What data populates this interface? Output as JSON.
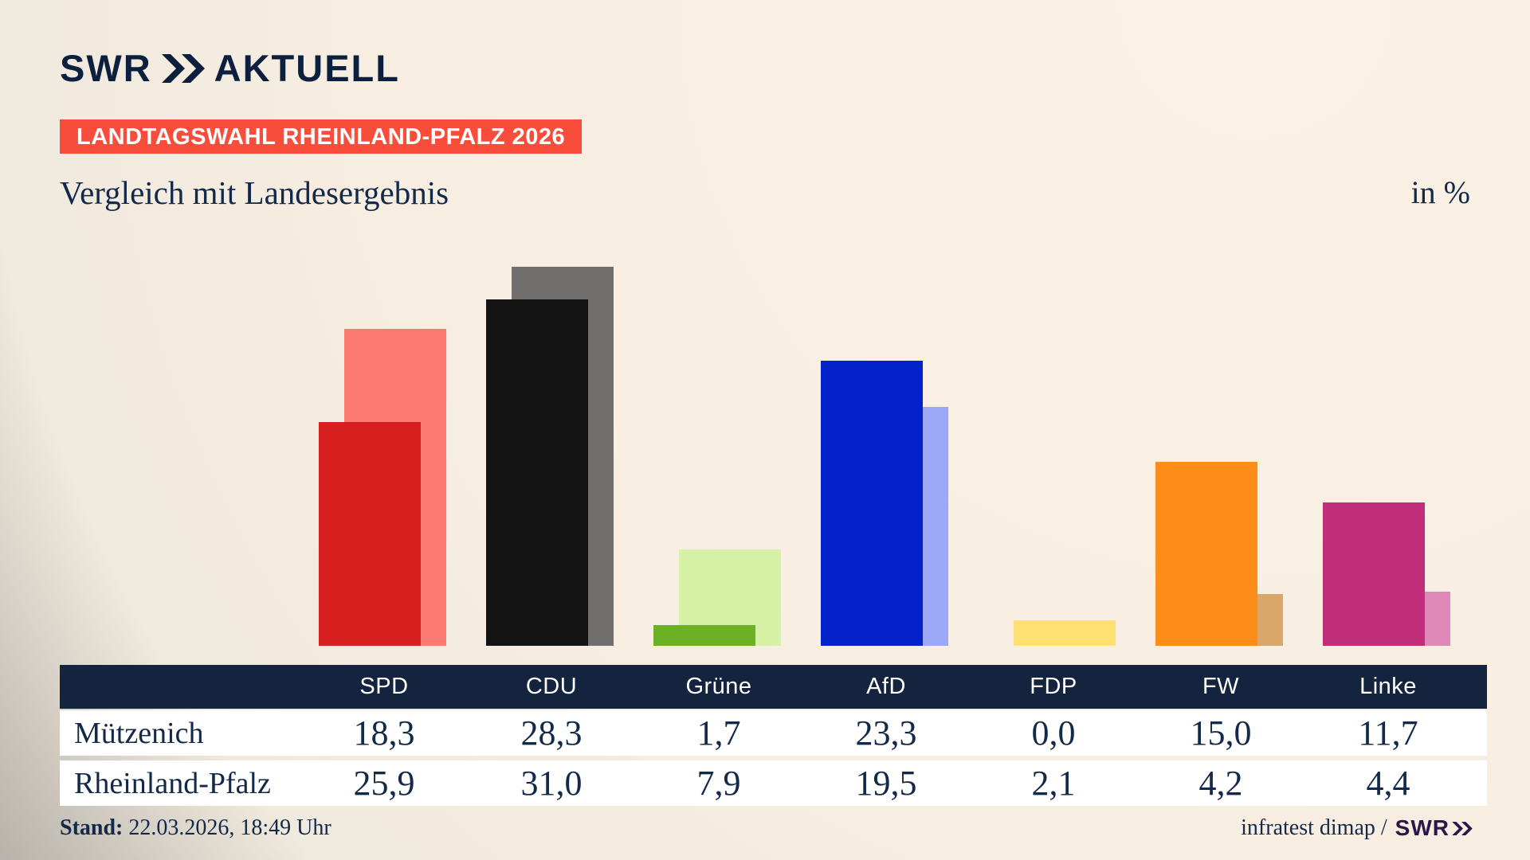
{
  "header": {
    "logo_swr": "SWR",
    "logo_aktuell": "AKTUELL",
    "badge": "LANDTAGSWAHL RHEINLAND-PFALZ 2026",
    "title": "Vergleich mit Landesergebnis",
    "unit_label": "in %"
  },
  "chart_data": {
    "type": "bar",
    "unit": "%",
    "title": "Vergleich mit Landesergebnis",
    "categories": [
      "SPD",
      "CDU",
      "Grüne",
      "AfD",
      "FDP",
      "FW",
      "Linke"
    ],
    "series": [
      {
        "name": "Mützenich",
        "values": [
          18.3,
          28.3,
          1.7,
          23.3,
          0.0,
          15.0,
          11.7
        ],
        "colors": [
          "#d81f1f",
          "#131313",
          "#6cb023",
          "#0422cc",
          "#ffd640",
          "#fb8d18",
          "#c02e79"
        ]
      },
      {
        "name": "Rheinland-Pfalz",
        "values": [
          25.9,
          31.0,
          7.9,
          19.5,
          2.1,
          4.2,
          4.4
        ],
        "colors": [
          "#fc7a72",
          "#706f6d",
          "#d6f1a6",
          "#9aa8f7",
          "#ffe173",
          "#d9a76a",
          "#e089b8"
        ]
      }
    ],
    "ylim": [
      0,
      34.5
    ],
    "grid": false,
    "legend_position": "table-below"
  },
  "table": {
    "columns": [
      "SPD",
      "CDU",
      "Grüne",
      "AfD",
      "FDP",
      "FW",
      "Linke"
    ],
    "rows": [
      {
        "label": "Mützenich",
        "values": [
          "18,3",
          "28,3",
          "1,7",
          "23,3",
          "0,0",
          "15,0",
          "11,7"
        ]
      },
      {
        "label": "Rheinland-Pfalz",
        "values": [
          "25,9",
          "31,0",
          "7,9",
          "19,5",
          "2,1",
          "4,2",
          "4,4"
        ]
      }
    ]
  },
  "footer": {
    "stand_label": "Stand:",
    "stand_value": "22.03.2026, 18:49 Uhr",
    "source_text": "infratest dimap /",
    "source_logo": "SWR"
  },
  "style": {
    "accent_red": "#f94d3c",
    "navy_text": "#13294a",
    "table_header_bg": "#14243f",
    "logo_navy": "#0d1f3e",
    "swr_purple": "#2e1547"
  }
}
